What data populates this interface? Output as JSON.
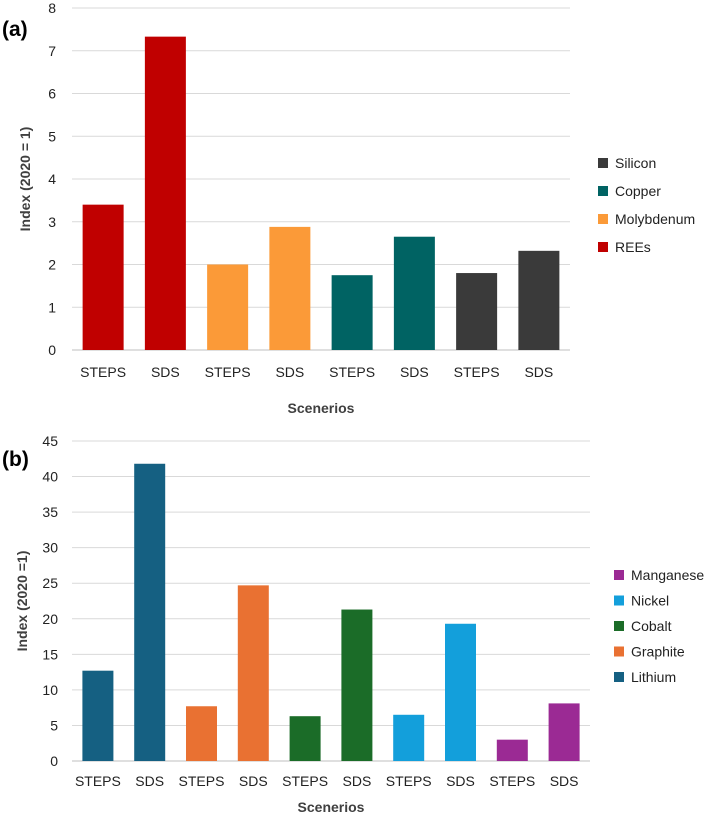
{
  "chart_data": [
    {
      "panel_label": "(a)",
      "type": "bar",
      "categories": [
        "STEPS",
        "SDS",
        "STEPS",
        "SDS",
        "STEPS",
        "SDS",
        "STEPS",
        "SDS"
      ],
      "bars": [
        {
          "category": "STEPS",
          "value": 3.4,
          "series": "REEs"
        },
        {
          "category": "SDS",
          "value": 7.33,
          "series": "REEs"
        },
        {
          "category": "STEPS",
          "value": 2.0,
          "series": "Molybdenum"
        },
        {
          "category": "SDS",
          "value": 2.88,
          "series": "Molybdenum"
        },
        {
          "category": "STEPS",
          "value": 1.75,
          "series": "Copper"
        },
        {
          "category": "SDS",
          "value": 2.65,
          "series": "Copper"
        },
        {
          "category": "STEPS",
          "value": 1.8,
          "series": "Silicon"
        },
        {
          "category": "SDS",
          "value": 2.32,
          "series": "Silicon"
        }
      ],
      "legend": [
        {
          "name": "Silicon",
          "color": "#3a3a3a"
        },
        {
          "name": "Copper",
          "color": "#006363"
        },
        {
          "name": "Molybdenum",
          "color": "#fb9a38"
        },
        {
          "name": "REEs",
          "color": "#c00000"
        }
      ],
      "xlabel": "Scenerios",
      "ylabel": "Index (2020 = 1)",
      "ylim": [
        0,
        8
      ],
      "yticks": [
        0,
        1,
        2,
        3,
        4,
        5,
        6,
        7,
        8
      ],
      "grid": true,
      "legend_position": "right"
    },
    {
      "panel_label": "(b)",
      "type": "bar",
      "categories": [
        "STEPS",
        "SDS",
        "STEPS",
        "SDS",
        "STEPS",
        "SDS",
        "STEPS",
        "SDS",
        "STEPS",
        "SDS"
      ],
      "bars": [
        {
          "category": "STEPS",
          "value": 12.7,
          "series": "Lithium"
        },
        {
          "category": "SDS",
          "value": 41.8,
          "series": "Lithium"
        },
        {
          "category": "STEPS",
          "value": 7.7,
          "series": "Graphite"
        },
        {
          "category": "SDS",
          "value": 24.7,
          "series": "Graphite"
        },
        {
          "category": "STEPS",
          "value": 6.3,
          "series": "Cobalt"
        },
        {
          "category": "SDS",
          "value": 21.3,
          "series": "Cobalt"
        },
        {
          "category": "STEPS",
          "value": 6.5,
          "series": "Nickel"
        },
        {
          "category": "SDS",
          "value": 19.3,
          "series": "Nickel"
        },
        {
          "category": "STEPS",
          "value": 3.0,
          "series": "Manganese"
        },
        {
          "category": "SDS",
          "value": 8.1,
          "series": "Manganese"
        }
      ],
      "legend": [
        {
          "name": "Manganese",
          "color": "#9b2a94"
        },
        {
          "name": "Nickel",
          "color": "#139fdb"
        },
        {
          "name": "Cobalt",
          "color": "#1b6c28"
        },
        {
          "name": "Graphite",
          "color": "#e97132"
        },
        {
          "name": "Lithium",
          "color": "#156082"
        }
      ],
      "xlabel": "Scenerios",
      "ylabel": "Index (2020 =1)",
      "ylim": [
        0,
        45
      ],
      "yticks": [
        0,
        5,
        10,
        15,
        20,
        25,
        30,
        35,
        40,
        45
      ],
      "grid": true,
      "legend_position": "right"
    }
  ]
}
